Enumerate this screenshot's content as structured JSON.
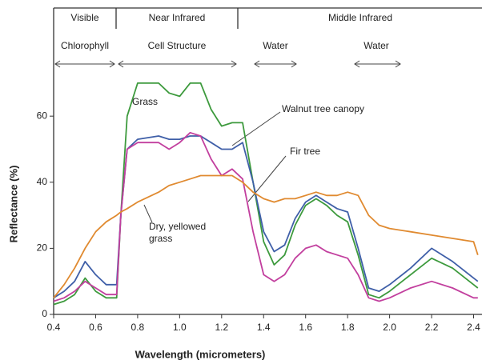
{
  "chart_data": {
    "type": "line",
    "regions": [
      "Visible",
      "Near Infrared",
      "Middle Infrared"
    ],
    "features": [
      "Chlorophyll",
      "Cell Structure",
      "Water",
      "Water"
    ],
    "x_label": "Wavelength (micrometers)",
    "y_label": "Reflectance (%)",
    "x": [
      0.4,
      0.45,
      0.5,
      0.55,
      0.6,
      0.65,
      0.7,
      0.72,
      0.75,
      0.8,
      0.9,
      0.95,
      1.0,
      1.05,
      1.1,
      1.15,
      1.2,
      1.25,
      1.3,
      1.35,
      1.4,
      1.45,
      1.5,
      1.55,
      1.6,
      1.65,
      1.7,
      1.75,
      1.8,
      1.85,
      1.9,
      1.95,
      2.0,
      2.1,
      2.2,
      2.3,
      2.4,
      2.42
    ],
    "series": [
      {
        "name": "Grass",
        "color": "#3d9a3d",
        "values": [
          3,
          4,
          6,
          11,
          7,
          5,
          5,
          30,
          60,
          70,
          70,
          67,
          66,
          70,
          70,
          62,
          57,
          58,
          58,
          40,
          22,
          15,
          18,
          27,
          33,
          35,
          33,
          30,
          28,
          18,
          6,
          5,
          7,
          12,
          17,
          14,
          9,
          8
        ]
      },
      {
        "name": "Walnut tree canopy",
        "color": "#3f5fa8",
        "values": [
          5,
          7,
          10,
          16,
          12,
          9,
          9,
          30,
          50,
          53,
          54,
          53,
          53,
          54,
          54,
          52,
          50,
          50,
          52,
          40,
          25,
          19,
          21,
          29,
          34,
          36,
          34,
          32,
          31,
          20,
          8,
          7,
          9,
          14,
          20,
          16,
          11,
          10
        ]
      },
      {
        "name": "Fir tree",
        "color": "#c23f9e",
        "values": [
          4,
          5,
          7,
          10,
          8,
          6,
          6,
          30,
          50,
          52,
          52,
          50,
          52,
          55,
          54,
          47,
          42,
          44,
          41,
          25,
          12,
          10,
          12,
          17,
          20,
          21,
          19,
          18,
          17,
          12,
          5,
          4,
          5,
          8,
          10,
          8,
          5,
          5
        ]
      },
      {
        "name": "Dry, yellowed grass",
        "color": "#e08a30",
        "values": [
          5,
          9,
          14,
          20,
          25,
          28,
          30,
          31,
          32,
          34,
          37,
          39,
          40,
          41,
          42,
          42,
          42,
          42,
          40,
          37,
          35,
          34,
          35,
          35,
          36,
          37,
          36,
          36,
          37,
          36,
          30,
          27,
          26,
          25,
          24,
          23,
          22,
          18
        ]
      }
    ],
    "xlim": [
      0.4,
      2.44
    ],
    "ylim": [
      0,
      92
    ],
    "xticks": [
      {
        "value": 0.4,
        "label": "0.4"
      },
      {
        "value": 0.6,
        "label": "0.6"
      },
      {
        "value": 0.8,
        "label": "0.8"
      },
      {
        "value": 1.0,
        "label": "1.0"
      },
      {
        "value": 1.2,
        "label": "1.2"
      },
      {
        "value": 1.4,
        "label": "1.4"
      },
      {
        "value": 1.6,
        "label": "1.6"
      },
      {
        "value": 1.8,
        "label": "1.8"
      },
      {
        "value": 2.0,
        "label": "2.0"
      },
      {
        "value": 2.2,
        "label": "2.2"
      },
      {
        "value": 2.4,
        "label": "2.4"
      }
    ],
    "yticks": [
      0,
      20,
      40,
      60
    ],
    "grid": false
  }
}
